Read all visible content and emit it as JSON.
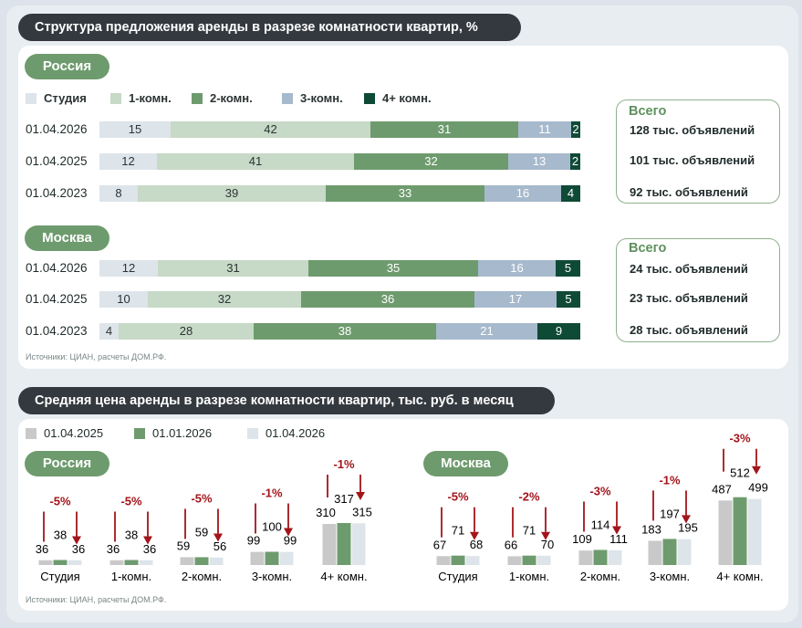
{
  "section1": {
    "title": "Структура предложения аренды в разрезе комнатности квартир, %",
    "legend": [
      "Студия",
      "1-комн.",
      "2-комн.",
      "3-комн.",
      "4+ комн."
    ],
    "colors": [
      "#dde4ea",
      "#c7d9c7",
      "#6e9b6e",
      "#a7b9cc",
      "#0f4a36"
    ],
    "totals_title": "Всего",
    "source": "Источники: ЦИАН, расчеты ДОМ.РФ.",
    "russia": {
      "label": "Россия",
      "rows": [
        {
          "date": "01.04.2026",
          "values": [
            15,
            42,
            31,
            11,
            2
          ],
          "total": "128 тыс. объявлений"
        },
        {
          "date": "01.04.2025",
          "values": [
            12,
            41,
            32,
            13,
            2
          ],
          "total": "101 тыс. объявлений"
        },
        {
          "date": "01.04.2023",
          "values": [
            8,
            39,
            33,
            16,
            4
          ],
          "total": "92 тыс. объявлений"
        }
      ]
    },
    "moscow": {
      "label": "Москва",
      "rows": [
        {
          "date": "01.04.2026",
          "values": [
            12,
            31,
            35,
            16,
            5
          ],
          "total": "24 тыс. объявлений"
        },
        {
          "date": "01.04.2025",
          "values": [
            10,
            32,
            36,
            17,
            5
          ],
          "total": "23 тыс. объявлений"
        },
        {
          "date": "01.04.2023",
          "values": [
            4,
            28,
            38,
            21,
            9
          ],
          "total": "28 тыс. объявлений"
        }
      ]
    }
  },
  "section2": {
    "title": "Средняя цена аренды в разрезе комнатности квартир, тыс. руб. в месяц",
    "legend": [
      "01.04.2025",
      "01.01.2026",
      "01.04.2026"
    ],
    "colors": [
      "#c9c9c9",
      "#6e9b6e",
      "#dde4ea"
    ],
    "arrow_color": "#a3141a",
    "source": "Источники: ЦИАН, расчеты ДОМ.РФ.",
    "russia_label": "Россия",
    "moscow_label": "Москва"
  },
  "chart_data": [
    {
      "type": "bar",
      "title": "Структура предложения аренды в разрезе комнатности квартир, %",
      "group": "Россия",
      "categories": [
        "01.04.2026",
        "01.04.2025",
        "01.04.2023"
      ],
      "series": [
        {
          "name": "Студия",
          "values": [
            15,
            12,
            8
          ]
        },
        {
          "name": "1-комн.",
          "values": [
            42,
            41,
            39
          ]
        },
        {
          "name": "2-комн.",
          "values": [
            31,
            32,
            33
          ]
        },
        {
          "name": "3-комн.",
          "values": [
            11,
            13,
            16
          ]
        },
        {
          "name": "4+ комн.",
          "values": [
            2,
            2,
            4
          ]
        }
      ],
      "stacked": true,
      "orientation": "horizontal"
    },
    {
      "type": "bar",
      "title": "Структура предложения аренды в разрезе комнатности квартир, %",
      "group": "Москва",
      "categories": [
        "01.04.2026",
        "01.04.2025",
        "01.04.2023"
      ],
      "series": [
        {
          "name": "Студия",
          "values": [
            12,
            10,
            4
          ]
        },
        {
          "name": "1-комн.",
          "values": [
            31,
            32,
            28
          ]
        },
        {
          "name": "2-комн.",
          "values": [
            35,
            36,
            38
          ]
        },
        {
          "name": "3-комн.",
          "values": [
            16,
            17,
            21
          ]
        },
        {
          "name": "4+ комн.",
          "values": [
            5,
            5,
            9
          ]
        }
      ],
      "stacked": true,
      "orientation": "horizontal"
    },
    {
      "type": "bar",
      "title": "Средняя цена аренды в разрезе комнатности квартир, тыс. руб. в месяц",
      "group": "Россия",
      "categories": [
        "Студия",
        "1-комн.",
        "2-комн.",
        "3-комн.",
        "4+ комн."
      ],
      "series": [
        {
          "name": "01.04.2025",
          "values": [
            36,
            36,
            59,
            99,
            310
          ]
        },
        {
          "name": "01.01.2026",
          "values": [
            38,
            38,
            59,
            100,
            317
          ]
        },
        {
          "name": "01.04.2026",
          "values": [
            36,
            36,
            56,
            99,
            315
          ]
        }
      ],
      "changes": [
        "-5%",
        "-5%",
        "-5%",
        "-1%",
        "-1%"
      ]
    },
    {
      "type": "bar",
      "title": "Средняя цена аренды в разрезе комнатности квартир, тыс. руб. в месяц",
      "group": "Москва",
      "categories": [
        "Студия",
        "1-комн.",
        "2-комн.",
        "3-комн.",
        "4+ комн."
      ],
      "series": [
        {
          "name": "01.04.2025",
          "values": [
            67,
            66,
            109,
            183,
            487
          ]
        },
        {
          "name": "01.01.2026",
          "values": [
            71,
            71,
            114,
            197,
            512
          ]
        },
        {
          "name": "01.04.2026",
          "values": [
            68,
            70,
            111,
            195,
            499
          ]
        }
      ],
      "changes": [
        "-5%",
        "-2%",
        "-3%",
        "-1%",
        "-3%"
      ]
    }
  ]
}
